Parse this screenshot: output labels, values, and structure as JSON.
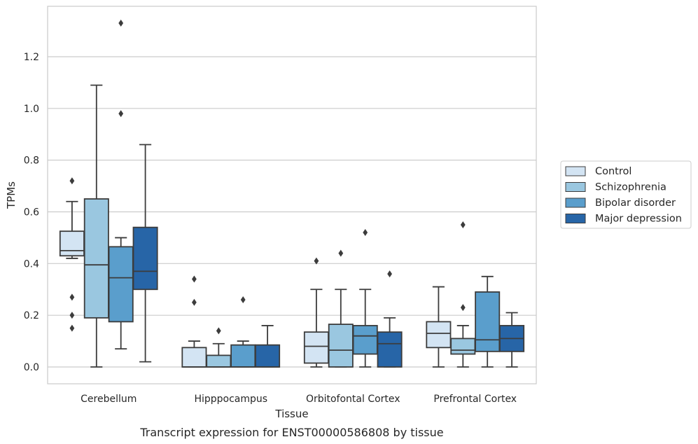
{
  "chart_data": {
    "type": "boxplot",
    "xlabel": "Tissue",
    "ylabel": "TPMs",
    "caption": "Transcript expression for ENST00000586808 by tissue",
    "ylim": [
      -0.065,
      1.395
    ],
    "yticks": [
      0.0,
      0.2,
      0.4,
      0.6,
      0.8,
      1.0,
      1.2
    ],
    "ytick_labels": [
      "0.0",
      "0.2",
      "0.4",
      "0.6",
      "0.8",
      "1.0",
      "1.2"
    ],
    "grid": "horizontal",
    "legend_position": "right",
    "categories": [
      "Cerebellum",
      "Hipppocampus",
      "Orbitofontal Cortex",
      "Prefrontal Cortex"
    ],
    "series": [
      {
        "name": "Control",
        "color": "#d3e4f3",
        "boxes": [
          {
            "whisker_low": 0.42,
            "q1": 0.43,
            "median": 0.45,
            "q3": 0.525,
            "whisker_high": 0.64,
            "outliers": [
              0.72,
              0.27,
              0.2,
              0.15
            ]
          },
          {
            "whisker_low": 0.0,
            "q1": 0.0,
            "median": 0.0,
            "q3": 0.075,
            "whisker_high": 0.1,
            "outliers": [
              0.34,
              0.25
            ]
          },
          {
            "whisker_low": 0.0,
            "q1": 0.015,
            "median": 0.08,
            "q3": 0.135,
            "whisker_high": 0.3,
            "outliers": [
              0.41
            ]
          },
          {
            "whisker_low": 0.0,
            "q1": 0.075,
            "median": 0.13,
            "q3": 0.175,
            "whisker_high": 0.31,
            "outliers": []
          }
        ]
      },
      {
        "name": "Schizophrenia",
        "color": "#9ac7e0",
        "boxes": [
          {
            "whisker_low": 0.0,
            "q1": 0.19,
            "median": 0.395,
            "q3": 0.65,
            "whisker_high": 1.09,
            "outliers": []
          },
          {
            "whisker_low": 0.0,
            "q1": 0.0,
            "median": 0.0,
            "q3": 0.045,
            "whisker_high": 0.09,
            "outliers": [
              0.14
            ]
          },
          {
            "whisker_low": 0.0,
            "q1": 0.0,
            "median": 0.065,
            "q3": 0.165,
            "whisker_high": 0.3,
            "outliers": [
              0.44
            ]
          },
          {
            "whisker_low": 0.0,
            "q1": 0.05,
            "median": 0.065,
            "q3": 0.11,
            "whisker_high": 0.16,
            "outliers": [
              0.23,
              0.55
            ]
          }
        ]
      },
      {
        "name": "Bipolar disorder",
        "color": "#5a9ecc",
        "boxes": [
          {
            "whisker_low": 0.07,
            "q1": 0.175,
            "median": 0.345,
            "q3": 0.465,
            "whisker_high": 0.5,
            "outliers": [
              0.98,
              1.33
            ]
          },
          {
            "whisker_low": 0.0,
            "q1": 0.0,
            "median": 0.0,
            "q3": 0.085,
            "whisker_high": 0.1,
            "outliers": [
              0.26
            ]
          },
          {
            "whisker_low": 0.0,
            "q1": 0.05,
            "median": 0.12,
            "q3": 0.16,
            "whisker_high": 0.3,
            "outliers": [
              0.52
            ]
          },
          {
            "whisker_low": 0.0,
            "q1": 0.06,
            "median": 0.105,
            "q3": 0.29,
            "whisker_high": 0.35,
            "outliers": []
          }
        ]
      },
      {
        "name": "Major depression",
        "color": "#2765a7",
        "boxes": [
          {
            "whisker_low": 0.02,
            "q1": 0.3,
            "median": 0.37,
            "q3": 0.54,
            "whisker_high": 0.86,
            "outliers": []
          },
          {
            "whisker_low": 0.0,
            "q1": 0.0,
            "median": 0.0,
            "q3": 0.085,
            "whisker_high": 0.16,
            "outliers": []
          },
          {
            "whisker_low": 0.0,
            "q1": 0.0,
            "median": 0.09,
            "q3": 0.135,
            "whisker_high": 0.19,
            "outliers": [
              0.36
            ]
          },
          {
            "whisker_low": 0.0,
            "q1": 0.06,
            "median": 0.11,
            "q3": 0.16,
            "whisker_high": 0.21,
            "outliers": []
          }
        ]
      }
    ]
  }
}
